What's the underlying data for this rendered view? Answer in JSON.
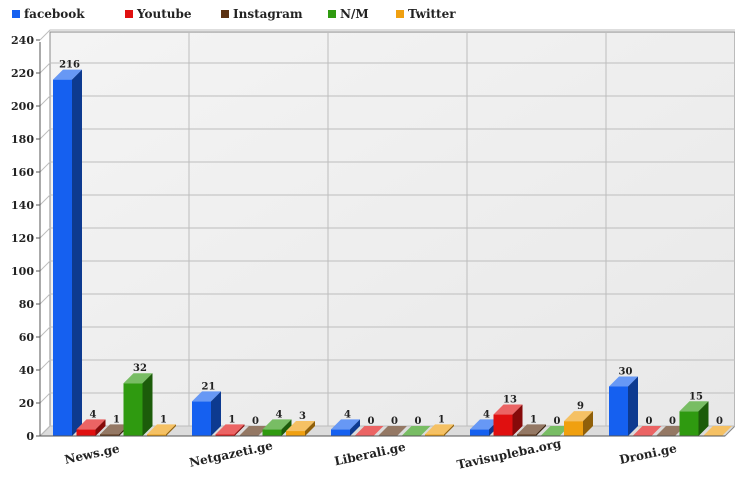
{
  "chart_data": {
    "type": "bar",
    "categories": [
      "News.ge",
      "Netgazeti.ge",
      "Liberali.ge",
      "Tavisupleba.org",
      "Droni.ge"
    ],
    "series": [
      {
        "name": "facebook",
        "color": "#1560f0",
        "values": [
          216,
          21,
          4,
          4,
          30
        ]
      },
      {
        "name": "Youtube",
        "color": "#e01010",
        "values": [
          4,
          1,
          0,
          13,
          0
        ]
      },
      {
        "name": "Instagram",
        "color": "#5a3010",
        "values": [
          1,
          0,
          0,
          1,
          0
        ]
      },
      {
        "name": "N/M",
        "color": "#2f9a10",
        "values": [
          32,
          4,
          0,
          0,
          15
        ]
      },
      {
        "name": "Twitter",
        "color": "#f0a010",
        "values": [
          1,
          3,
          1,
          9,
          0
        ]
      }
    ],
    "ylim": [
      0,
      240
    ],
    "yticks": [
      0,
      20,
      40,
      60,
      80,
      100,
      120,
      140,
      160,
      180,
      200,
      220,
      240
    ],
    "grid": true,
    "legend_position": "top-left",
    "three_d": true
  }
}
